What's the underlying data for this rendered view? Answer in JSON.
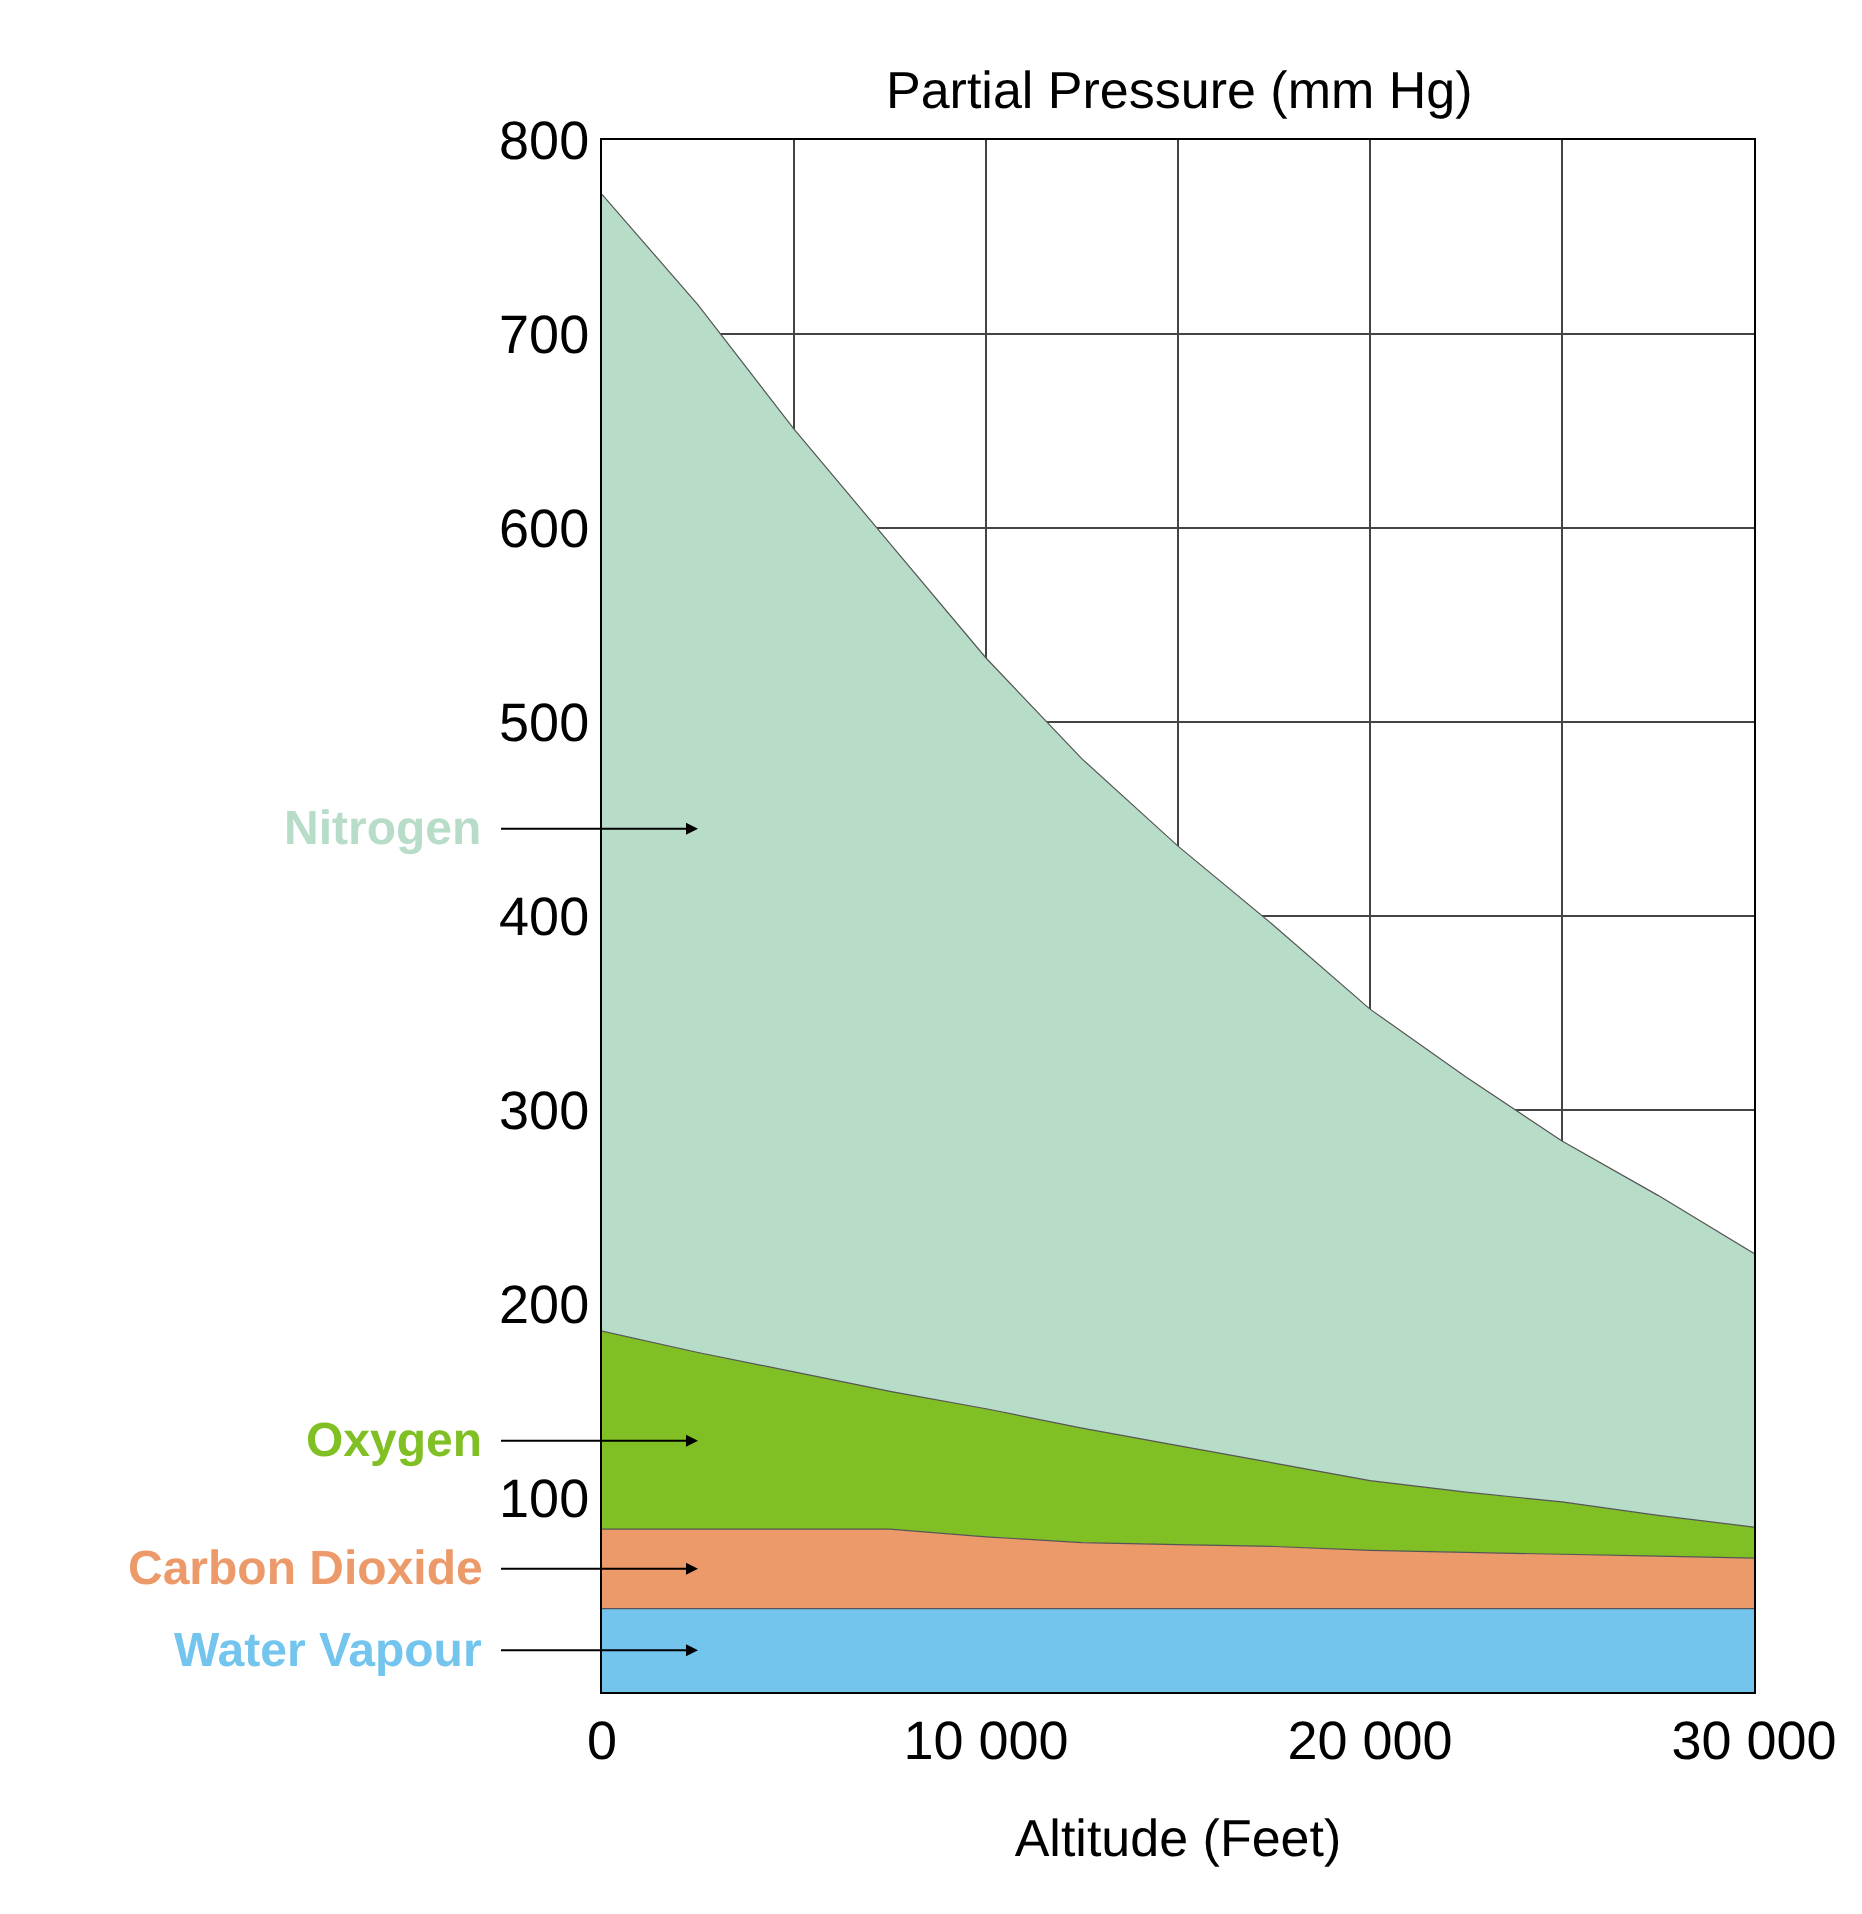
{
  "chart_data": {
    "type": "area",
    "stacked": true,
    "xlabel": "Altitude (Feet)",
    "ylabel": "Partial Pressure (mm Hg)",
    "x": [
      0,
      2500,
      5000,
      7500,
      10000,
      12500,
      15000,
      17500,
      20000,
      22500,
      25000,
      27500,
      30000
    ],
    "series": [
      {
        "name": "Water Vapour",
        "color": "#73c5ee",
        "values": [
          43,
          43,
          43,
          43,
          43,
          43,
          43,
          43,
          43,
          43,
          43,
          43,
          43
        ]
      },
      {
        "name": "Carbon Dioxide",
        "color": "#ec9a6a",
        "values": [
          41,
          41,
          41,
          41,
          37,
          34,
          33,
          32,
          30,
          29,
          28,
          27,
          26
        ]
      },
      {
        "name": "Oxygen",
        "color": "#80c024",
        "values": [
          102,
          91,
          81,
          71,
          66,
          59,
          51,
          43,
          36,
          31,
          27,
          21,
          16
        ]
      },
      {
        "name": "Nitrogen",
        "color": "#b7ddc8",
        "values": [
          586,
          540,
          486,
          437,
          387,
          345,
          309,
          277,
          243,
          214,
          186,
          165,
          141
        ]
      }
    ],
    "xlim": [
      0,
      30000
    ],
    "ylim": [
      0,
      800
    ],
    "xticks": [
      0,
      {
        "value": 5000,
        "label": null
      },
      {
        "value": 10000,
        "label": "10 000"
      },
      {
        "value": 15000,
        "label": null
      },
      {
        "value": 20000,
        "label": "20 000"
      },
      {
        "value": 25000,
        "label": null
      },
      {
        "value": 30000,
        "label": "30 000"
      }
    ],
    "yticks": [
      100,
      200,
      300,
      400,
      500,
      600,
      700,
      800
    ],
    "grid": true
  }
}
